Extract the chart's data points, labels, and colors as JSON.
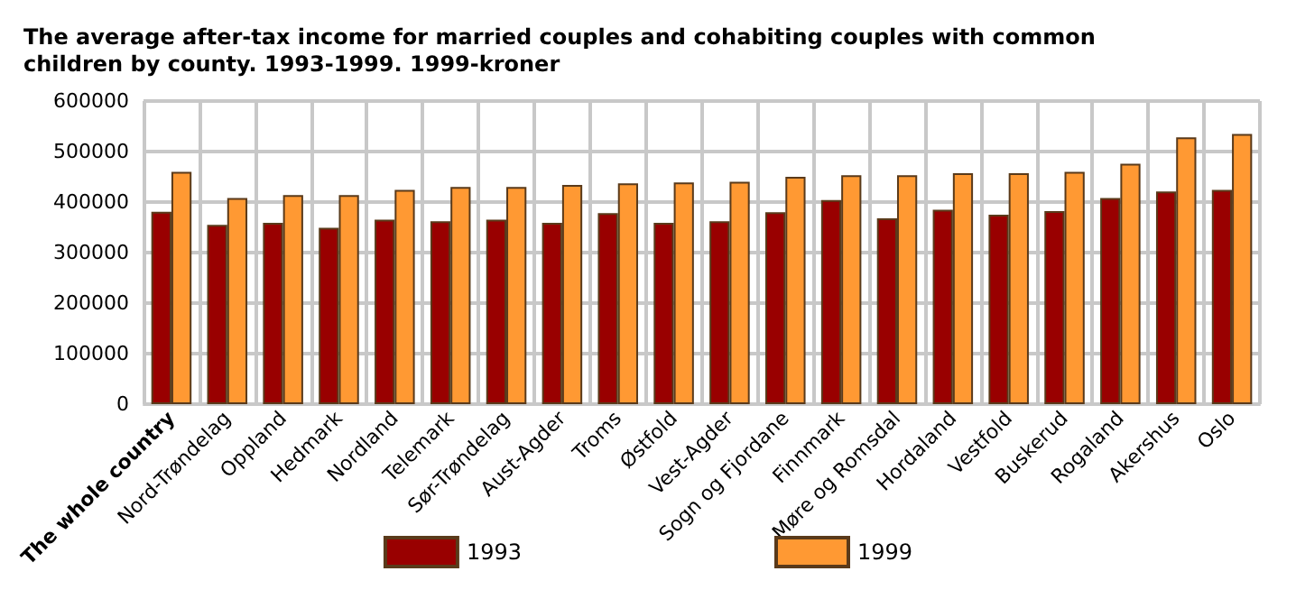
{
  "chart_data": {
    "type": "bar",
    "title": "The average after-tax income for married couples and cohabiting couples with common children by county. 1993-1999. 1999-kroner",
    "categories": [
      "The whole country",
      "Nord-Trøndelag",
      "Oppland",
      "Hedmark",
      "Nordland",
      "Telemark",
      "Sør-Trøndelag",
      "Aust-Agder",
      "Troms",
      "Østfold",
      "Vest-Agder",
      "Sogn og Fjordane",
      "Finnmark",
      "Møre og Romsdal",
      "Hordaland",
      "Vestfold",
      "Buskerud",
      "Rogaland",
      "Akershus",
      "Oslo"
    ],
    "series": [
      {
        "name": "1993",
        "color": "#990000",
        "values": [
          381000,
          355000,
          359000,
          349000,
          365000,
          362000,
          365000,
          359000,
          378000,
          359000,
          362000,
          380000,
          404000,
          368000,
          385000,
          375000,
          382000,
          408000,
          421000,
          424000
        ]
      },
      {
        "name": "1999",
        "color": "#ff9933",
        "values": [
          460000,
          408000,
          414000,
          414000,
          424000,
          430000,
          430000,
          434000,
          437000,
          439000,
          440000,
          450000,
          453000,
          453000,
          457000,
          457000,
          460000,
          476000,
          528000,
          535000
        ]
      }
    ],
    "ylim": [
      0,
      600000
    ],
    "yticks": [
      0,
      100000,
      200000,
      300000,
      400000,
      500000,
      600000
    ],
    "grid": true,
    "legend": "bottom"
  }
}
